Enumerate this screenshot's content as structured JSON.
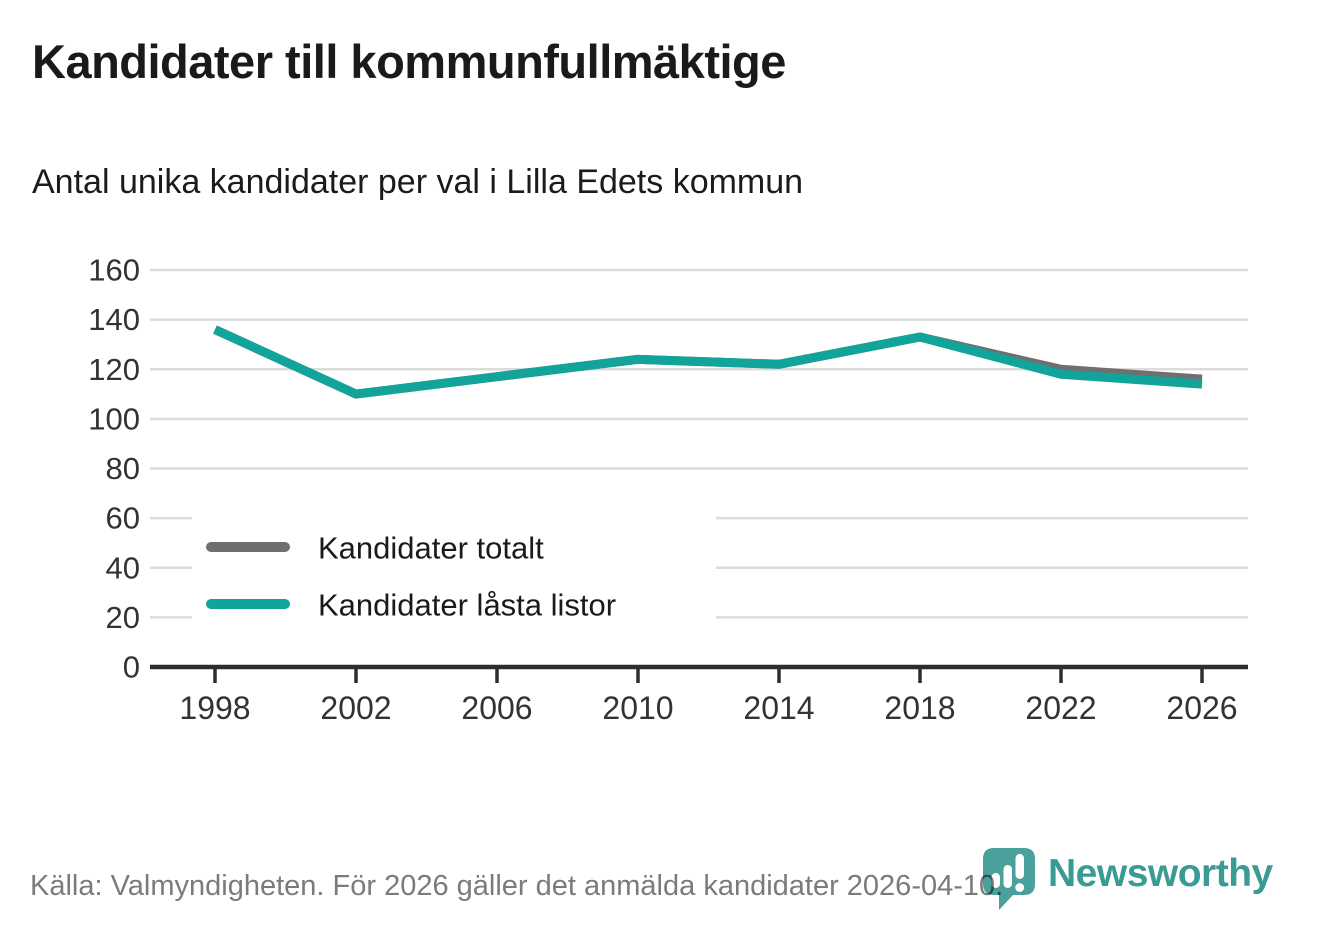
{
  "header": {
    "title": "Kandidater till kommunfullmäktige",
    "subtitle": "Antal unika kandidater per val i Lilla Edets kommun"
  },
  "chart_data": {
    "type": "line",
    "categories": [
      "1998",
      "2002",
      "2006",
      "2010",
      "2014",
      "2018",
      "2022",
      "2026"
    ],
    "series": [
      {
        "name": "Kandidater totalt",
        "color": "#6f6f6f",
        "values": [
          136,
          110,
          117,
          124,
          122,
          133,
          120,
          116
        ]
      },
      {
        "name": "Kandidater låsta listor",
        "color": "#12a49a",
        "values": [
          136,
          110,
          117,
          124,
          122,
          133,
          118,
          114
        ]
      }
    ],
    "title": "Kandidater till kommunfullmäktige",
    "subtitle": "Antal unika kandidater per val i Lilla Edets kommun",
    "xlabel": "",
    "ylabel": "",
    "ylim": [
      0,
      160
    ],
    "yticks": [
      0,
      20,
      40,
      60,
      80,
      100,
      120,
      140,
      160
    ],
    "grid": true,
    "legend_position": "inside-bottom-left"
  },
  "footer": {
    "source": "Källa: Valmyndigheten. För 2026 gäller det anmälda kandidater 2026-04-10."
  },
  "logo": {
    "text": "Newsworthy",
    "icon_color": "#4aa09a",
    "text_color": "#3a9b94"
  },
  "style_colors": {
    "text": "#1a1a1a",
    "axis_labels": "#333333",
    "gridline": "#dcdcdc",
    "axis_line": "#2d2d2d",
    "footer_text": "#7b7b7b",
    "legend_background": "#ffffff"
  }
}
